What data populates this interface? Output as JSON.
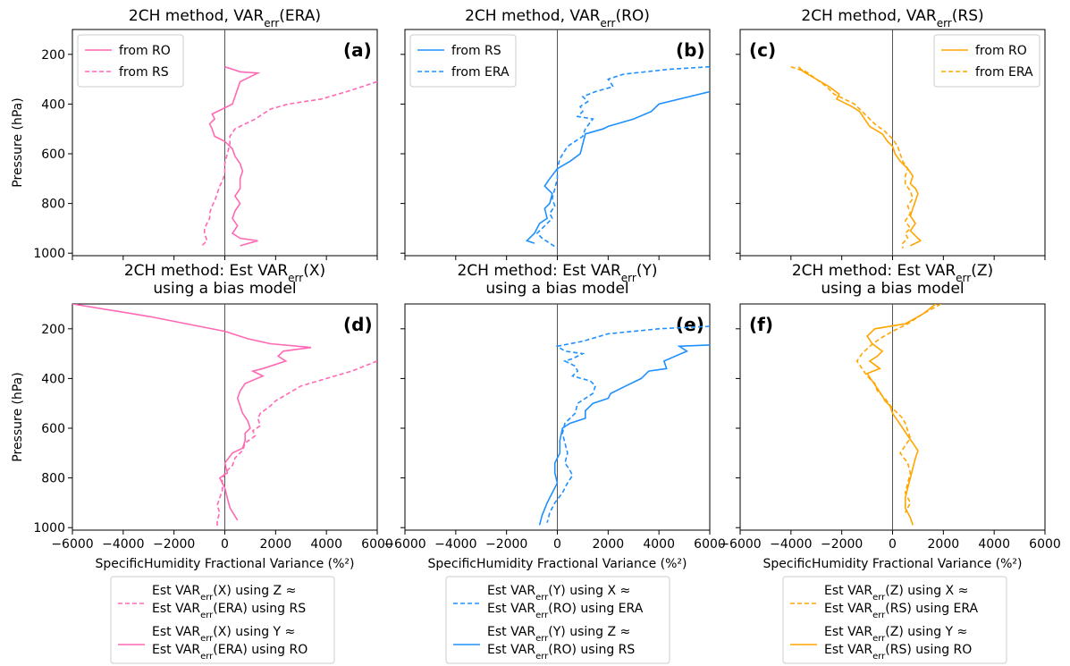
{
  "colors": {
    "pink": "#ff69b4",
    "blue": "#1e90ff",
    "orange": "#ffa500",
    "zero_line": "#555555"
  },
  "shared": {
    "ylabel": "Pressure (hPa)",
    "xlabel": "SpecificHumidity Fractional Variance (%²)",
    "ylim": [
      1010,
      100
    ],
    "yticks": [
      200,
      400,
      600,
      800,
      1000
    ],
    "xlim": [
      -6000,
      6000
    ],
    "xticks": [
      -6000,
      -4000,
      -2000,
      0,
      2000,
      4000,
      6000
    ],
    "xtick_labels": {
      "col0": [
        "−6000",
        "−4000",
        "−2000",
        "0",
        "2000",
        "4000",
        "6000"
      ],
      "col1": [
        "−6000",
        "−4000",
        "−2000",
        "0",
        "2000",
        "4000",
        "6000"
      ],
      "col2": [
        "−6000",
        "−4000",
        "−2000",
        "0",
        "2000",
        "4000",
        "6000"
      ]
    }
  },
  "bottom_legends": [
    {
      "color": "pink",
      "entries": [
        {
          "dash": true,
          "line1": "Est VARerr(X) using Z ≈",
          "line2": "Est VARerr(ERA) using RS"
        },
        {
          "dash": false,
          "line1": "Est VARerr(X) using Y ≈",
          "line2": "Est VARerr(ERA) using RO"
        }
      ]
    },
    {
      "color": "blue",
      "entries": [
        {
          "dash": true,
          "line1": "Est VARerr(Y) using X ≈",
          "line2": "Est VARerr(RO) using ERA"
        },
        {
          "dash": false,
          "line1": "Est VARerr(Y) using Z ≈",
          "line2": "Est VARerr(RO) using RS"
        }
      ]
    },
    {
      "color": "orange",
      "entries": [
        {
          "dash": true,
          "line1": "Est VARerr(Z) using X ≈",
          "line2": "Est VARerr(RS) using ERA"
        },
        {
          "dash": false,
          "line1": "Est VARerr(Z) using Y ≈",
          "line2": "Est VARerr(RS) using RO"
        }
      ]
    }
  ],
  "chart_data": [
    {
      "type": "line",
      "panel": "(a)",
      "title": "2CH method, VARerr(ERA)",
      "color": "pink",
      "legend": {
        "loc": "upper-left",
        "entries": [
          "from RO",
          "from RS"
        ]
      },
      "series": [
        {
          "name": "from RO",
          "style": "solid",
          "x": [
            0,
            600,
            1300,
            600,
            500,
            400,
            300,
            -100,
            -500,
            -400,
            -600,
            -500,
            -400,
            0,
            300,
            400,
            600,
            700,
            600,
            600,
            400,
            600,
            400,
            300,
            500,
            300,
            600,
            1300,
            600
          ],
          "y": [
            250,
            270,
            275,
            310,
            340,
            370,
            400,
            420,
            440,
            460,
            480,
            500,
            530,
            550,
            580,
            610,
            640,
            670,
            700,
            740,
            770,
            800,
            830,
            860,
            890,
            920,
            940,
            950,
            970
          ]
        },
        {
          "name": "from RS",
          "style": "dashed",
          "x": [
            6000,
            4800,
            3800,
            2500,
            1800,
            1500,
            1200,
            800,
            400,
            200,
            200,
            100,
            0,
            0,
            -100,
            -200,
            -300,
            -400,
            -500,
            -600,
            -600,
            -700,
            -800,
            -800,
            -700,
            -900
          ],
          "y": [
            310,
            350,
            380,
            400,
            420,
            440,
            460,
            480,
            500,
            530,
            560,
            600,
            640,
            680,
            710,
            730,
            760,
            790,
            810,
            840,
            860,
            880,
            900,
            920,
            950,
            970
          ]
        }
      ]
    },
    {
      "type": "line",
      "panel": "(b)",
      "title": "2CH method, VARerr(RO)",
      "color": "blue",
      "legend": {
        "loc": "upper-left",
        "entries": [
          "from RS",
          "from ERA"
        ]
      },
      "series": [
        {
          "name": "from RS",
          "style": "solid",
          "x": [
            6000,
            4000,
            3700,
            3000,
            2000,
            1800,
            1100,
            900,
            500,
            0,
            -300,
            -500,
            -200,
            -300,
            -500,
            -400,
            -700,
            -800,
            -900,
            -1200,
            -900
          ],
          "y": [
            350,
            400,
            430,
            460,
            490,
            500,
            520,
            600,
            630,
            660,
            700,
            730,
            760,
            800,
            820,
            860,
            880,
            900,
            920,
            950,
            960
          ]
        },
        {
          "name": "from ERA",
          "style": "dashed",
          "x": [
            6000,
            4400,
            2600,
            2000,
            2200,
            1500,
            1000,
            1200,
            900,
            1000,
            800,
            1400,
            1100,
            1000,
            400,
            100,
            0,
            0,
            -100,
            -200,
            -100,
            -300,
            -200,
            -400,
            -600,
            -800,
            -600,
            -300,
            0
          ],
          "y": [
            250,
            260,
            280,
            300,
            330,
            350,
            370,
            390,
            410,
            430,
            450,
            460,
            500,
            530,
            570,
            620,
            660,
            700,
            740,
            780,
            810,
            840,
            860,
            880,
            900,
            920,
            940,
            960,
            980
          ]
        }
      ]
    },
    {
      "type": "line",
      "panel": "(c)",
      "title": "2CH method, VARerr(RS)",
      "color": "orange",
      "legend": {
        "loc": "upper-right",
        "entries": [
          "from RO",
          "from ERA"
        ]
      },
      "series": [
        {
          "name": "from RO",
          "style": "solid",
          "x": [
            -3700,
            -3500,
            -3000,
            -2500,
            -2100,
            -2200,
            -1600,
            -1300,
            -1100,
            -900,
            -400,
            -200,
            0,
            100,
            300,
            600,
            800,
            700,
            900,
            1000,
            900,
            800,
            700,
            900,
            700,
            900,
            1100,
            700
          ],
          "y": [
            250,
            270,
            300,
            330,
            360,
            380,
            410,
            430,
            460,
            490,
            520,
            550,
            570,
            600,
            630,
            660,
            690,
            720,
            740,
            760,
            790,
            820,
            850,
            880,
            910,
            930,
            950,
            970
          ]
        },
        {
          "name": "from ERA",
          "style": "dashed",
          "x": [
            -4000,
            -3400,
            -3000,
            -2600,
            -2300,
            -1900,
            -1500,
            -1200,
            -1000,
            -700,
            -300,
            0,
            200,
            300,
            400,
            600,
            500,
            500,
            700,
            800,
            600,
            700,
            500,
            700,
            500,
            600,
            400,
            400
          ],
          "y": [
            250,
            270,
            300,
            330,
            360,
            380,
            400,
            430,
            450,
            480,
            510,
            540,
            570,
            600,
            630,
            660,
            690,
            720,
            750,
            780,
            810,
            840,
            870,
            900,
            920,
            940,
            960,
            980
          ]
        }
      ]
    },
    {
      "type": "line",
      "panel": "(d)",
      "title": "2CH method: Est VARerr(X) using a bias model",
      "color": "pink",
      "series": [
        {
          "name": "Est VARerr(X) using Z ≈ Est VARerr(ERA) using RS",
          "style": "dashed",
          "x": [
            6000,
            5000,
            4000,
            3000,
            2500,
            2000,
            1800,
            1400,
            1300,
            1400,
            1100,
            1200,
            800,
            700,
            400,
            300,
            0,
            -100,
            -100,
            -200,
            -300,
            -200,
            -300,
            -300
          ],
          "y": [
            330,
            370,
            400,
            430,
            460,
            490,
            510,
            540,
            560,
            590,
            610,
            630,
            660,
            690,
            720,
            750,
            780,
            810,
            850,
            880,
            910,
            940,
            970,
            1000
          ]
        },
        {
          "name": "Est VARerr(X) using Y ≈ Est VARerr(ERA) using RO",
          "style": "solid",
          "x": [
            -6000,
            -3000,
            0,
            900,
            1800,
            3400,
            2300,
            2100,
            2400,
            1500,
            1100,
            1500,
            800,
            600,
            500,
            600,
            700,
            900,
            1000,
            800,
            800,
            700,
            300,
            0,
            100,
            -200,
            0,
            100,
            200,
            500
          ],
          "y": [
            100,
            150,
            210,
            240,
            260,
            275,
            290,
            310,
            330,
            360,
            370,
            390,
            420,
            450,
            480,
            510,
            540,
            570,
            600,
            620,
            650,
            680,
            700,
            740,
            780,
            800,
            840,
            880,
            920,
            970
          ]
        }
      ]
    },
    {
      "type": "line",
      "panel": "(e)",
      "title": "2CH method: Est VARerr(Y) using a bias model",
      "color": "blue",
      "series": [
        {
          "name": "Est VARerr(Y) using X ≈ Est VARerr(RO) using ERA",
          "style": "dashed",
          "x": [
            6000,
            4000,
            2000,
            1000,
            0,
            300,
            1000,
            600,
            300,
            700,
            800,
            600,
            1300,
            1500,
            1400,
            800,
            700,
            300,
            200,
            300,
            400,
            300,
            500,
            600,
            400,
            200,
            -100,
            -300,
            -400
          ],
          "y": [
            190,
            200,
            220,
            250,
            270,
            290,
            300,
            320,
            330,
            350,
            370,
            390,
            410,
            430,
            460,
            500,
            540,
            580,
            620,
            660,
            700,
            740,
            770,
            790,
            820,
            860,
            900,
            940,
            980
          ]
        },
        {
          "name": "Est VARerr(Y) using Z ≈ Est VARerr(RO) using RS",
          "style": "solid",
          "x": [
            6000,
            4800,
            5100,
            4200,
            4300,
            3600,
            3300,
            2700,
            2100,
            2000,
            1400,
            1100,
            1100,
            500,
            200,
            100,
            100,
            -100,
            -100,
            0,
            -200,
            -400,
            -600,
            -700
          ],
          "y": [
            265,
            270,
            290,
            330,
            360,
            370,
            400,
            430,
            460,
            480,
            500,
            530,
            560,
            580,
            600,
            650,
            700,
            740,
            780,
            820,
            860,
            900,
            950,
            990
          ]
        }
      ]
    },
    {
      "type": "line",
      "panel": "(f)",
      "title": "2CH method: Est VARerr(Z) using a bias model",
      "color": "orange",
      "series": [
        {
          "name": "Est VARerr(Z) using X ≈ Est VARerr(RS) using ERA",
          "style": "dashed",
          "x": [
            1900,
            1200,
            600,
            0,
            -500,
            -900,
            -1200,
            -1400,
            -1200,
            -1000,
            -700,
            -600,
            -300,
            0,
            400,
            500,
            600,
            700,
            500,
            300,
            600,
            700,
            600,
            500,
            700,
            500
          ],
          "y": [
            100,
            140,
            180,
            210,
            240,
            270,
            300,
            330,
            360,
            390,
            420,
            450,
            480,
            520,
            560,
            580,
            610,
            640,
            670,
            700,
            740,
            780,
            820,
            860,
            900,
            940
          ]
        },
        {
          "name": "Est VARerr(Z) using Y ≈ Est VARerr(RS) using RO",
          "style": "solid",
          "x": [
            1700,
            1200,
            500,
            -700,
            -1000,
            -800,
            -400,
            -600,
            -900,
            -500,
            -1000,
            -800,
            -600,
            -400,
            -300,
            -100,
            0,
            200,
            400,
            600,
            800,
            1000,
            900,
            800,
            700,
            600,
            500,
            500,
            700,
            800
          ],
          "y": [
            100,
            140,
            180,
            200,
            230,
            260,
            290,
            310,
            330,
            360,
            380,
            410,
            440,
            470,
            490,
            510,
            540,
            570,
            600,
            630,
            660,
            690,
            720,
            760,
            800,
            840,
            880,
            920,
            960,
            990
          ]
        }
      ]
    }
  ]
}
